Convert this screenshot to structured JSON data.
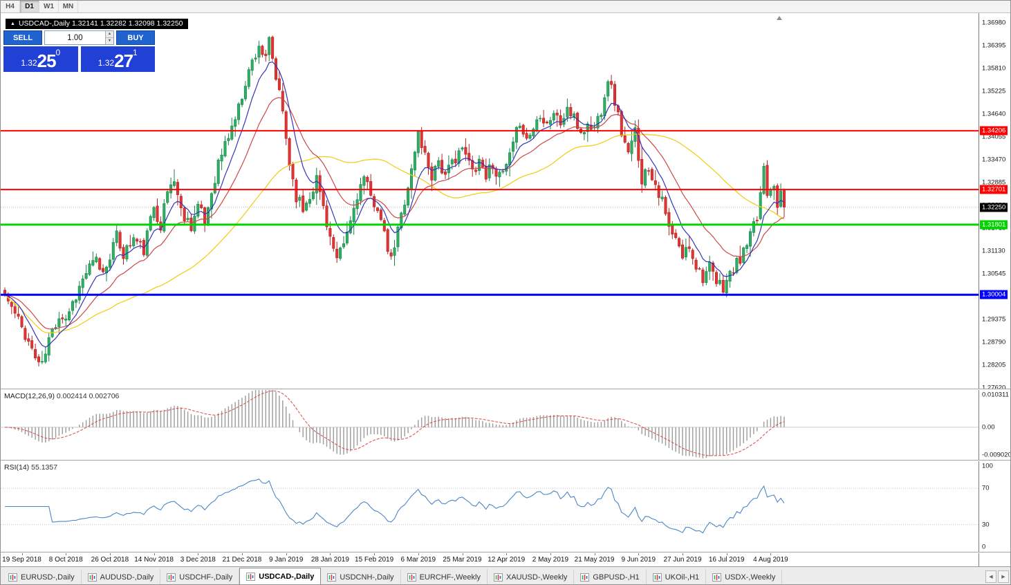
{
  "toolbar": {
    "timeframes": [
      {
        "label": "H4",
        "active": false
      },
      {
        "label": "D1",
        "active": true
      },
      {
        "label": "W1",
        "active": false
      },
      {
        "label": "MN",
        "active": false
      }
    ]
  },
  "chart_header": {
    "info": "USDCAD-,Daily  1.32141 1.32282 1.32098 1.32250"
  },
  "trade_panel": {
    "sell_label": "SELL",
    "buy_label": "BUY",
    "volume": "1.00",
    "sell_price": {
      "prefix": "1.32",
      "main": "25",
      "pip": "0"
    },
    "buy_price": {
      "prefix": "1.32",
      "main": "27",
      "pip": "1"
    },
    "accent_color": "#2063cf",
    "price_box_color": "#2140d6"
  },
  "price_axis": {
    "min": 1.276,
    "max": 1.3722,
    "labels": [
      "1.36980",
      "1.36395",
      "1.35810",
      "1.35225",
      "1.34640",
      "1.34055",
      "1.33470",
      "1.32885",
      "1.32300",
      "1.31715",
      "1.31130",
      "1.30545",
      "1.29960",
      "1.29375",
      "1.28790",
      "1.28205",
      "1.27620"
    ]
  },
  "levels": [
    {
      "label": "1.34206",
      "value": 1.34206,
      "color": "#ff0000",
      "thickness": 2
    },
    {
      "label": "1.32701",
      "value": 1.32701,
      "color": "#ff0000",
      "thickness": 2
    },
    {
      "label": "1.31801",
      "value": 1.31801,
      "color": "#00d400",
      "thickness": 3
    },
    {
      "label": "1.30004",
      "value": 1.30004,
      "color": "#0000ff",
      "thickness": 3
    }
  ],
  "current_price": {
    "label": "1.32250",
    "value": 1.3225
  },
  "chart_data": {
    "type": "candlestick",
    "symbol": "USDCAD",
    "timeframe": "Daily",
    "bars_total": 231,
    "noise_seed": 11,
    "colors": {
      "bull": "#2eaf64",
      "bull_border": "#188347",
      "bear": "#e03535",
      "bear_border": "#b51f1f",
      "ma_fast": "#3333bb",
      "ma_mid": "#cf4646",
      "ma_slow": "#f2cf1f",
      "macd_hist": "#a0a0a0",
      "macd_signal": "#e04545",
      "rsi_line": "#4a86c8"
    },
    "moving_averages": [
      {
        "period": 8,
        "type": "ema"
      },
      {
        "period": 20,
        "type": "ema"
      },
      {
        "period": 50,
        "type": "sma"
      }
    ],
    "anchors": [
      [
        0,
        1.3
      ],
      [
        3,
        1.295
      ],
      [
        6,
        1.29
      ],
      [
        9,
        1.284
      ],
      [
        11,
        1.2818
      ],
      [
        13,
        1.2885
      ],
      [
        16,
        1.295
      ],
      [
        18,
        1.2942
      ],
      [
        21,
        1.3
      ],
      [
        24,
        1.3058
      ],
      [
        27,
        1.3088
      ],
      [
        29,
        1.3055
      ],
      [
        31,
        1.3105
      ],
      [
        33,
        1.3148
      ],
      [
        35,
        1.3105
      ],
      [
        38,
        1.3145
      ],
      [
        41,
        1.3115
      ],
      [
        44,
        1.3228
      ],
      [
        46,
        1.318
      ],
      [
        48,
        1.3265
      ],
      [
        50,
        1.3298
      ],
      [
        52,
        1.3215
      ],
      [
        55,
        1.318
      ],
      [
        57,
        1.3228
      ],
      [
        59,
        1.3185
      ],
      [
        61,
        1.3265
      ],
      [
        63,
        1.3338
      ],
      [
        66,
        1.3408
      ],
      [
        69,
        1.3478
      ],
      [
        71,
        1.3548
      ],
      [
        73,
        1.3598
      ],
      [
        75,
        1.3642
      ],
      [
        77,
        1.3598
      ],
      [
        78,
        1.3648
      ],
      [
        80,
        1.3555
      ],
      [
        82,
        1.3468
      ],
      [
        84,
        1.3338
      ],
      [
        86,
        1.3255
      ],
      [
        88,
        1.322
      ],
      [
        90,
        1.3258
      ],
      [
        92,
        1.3298
      ],
      [
        94,
        1.3228
      ],
      [
        96,
        1.3148
      ],
      [
        98,
        1.3082
      ],
      [
        100,
        1.3128
      ],
      [
        102,
        1.3188
      ],
      [
        104,
        1.3258
      ],
      [
        106,
        1.3298
      ],
      [
        108,
        1.3248
      ],
      [
        110,
        1.3228
      ],
      [
        112,
        1.3148
      ],
      [
        114,
        1.3085
      ],
      [
        116,
        1.3165
      ],
      [
        118,
        1.3245
      ],
      [
        120,
        1.3318
      ],
      [
        122,
        1.3415
      ],
      [
        124,
        1.3358
      ],
      [
        126,
        1.3308
      ],
      [
        128,
        1.3348
      ],
      [
        130,
        1.3298
      ],
      [
        132,
        1.3338
      ],
      [
        134,
        1.3372
      ],
      [
        136,
        1.3358
      ],
      [
        138,
        1.3318
      ],
      [
        140,
        1.3348
      ],
      [
        142,
        1.3308
      ],
      [
        144,
        1.3338
      ],
      [
        146,
        1.3298
      ],
      [
        148,
        1.3328
      ],
      [
        150,
        1.3378
      ],
      [
        152,
        1.3448
      ],
      [
        154,
        1.3398
      ],
      [
        156,
        1.3428
      ],
      [
        158,
        1.3468
      ],
      [
        160,
        1.3442
      ],
      [
        162,
        1.3468
      ],
      [
        164,
        1.3438
      ],
      [
        166,
        1.3478
      ],
      [
        168,
        1.3448
      ],
      [
        170,
        1.3418
      ],
      [
        172,
        1.3432
      ],
      [
        174,
        1.3428
      ],
      [
        176,
        1.3478
      ],
      [
        178,
        1.3558
      ],
      [
        180,
        1.3498
      ],
      [
        182,
        1.3418
      ],
      [
        184,
        1.3355
      ],
      [
        186,
        1.3418
      ],
      [
        188,
        1.3298
      ],
      [
        190,
        1.3328
      ],
      [
        192,
        1.3288
      ],
      [
        194,
        1.3238
      ],
      [
        196,
        1.3168
      ],
      [
        198,
        1.3138
      ],
      [
        200,
        1.3098
      ],
      [
        202,
        1.3128
      ],
      [
        204,
        1.3078
      ],
      [
        206,
        1.3048
      ],
      [
        208,
        1.3068
      ],
      [
        210,
        1.3028
      ],
      [
        212,
        1.3022
      ],
      [
        214,
        1.3052
      ],
      [
        216,
        1.3078
      ],
      [
        218,
        1.3108
      ],
      [
        220,
        1.3148
      ],
      [
        222,
        1.3195
      ],
      [
        224,
        1.3332
      ],
      [
        225,
        1.3268
      ],
      [
        227,
        1.3292
      ],
      [
        228,
        1.3238
      ],
      [
        229,
        1.3252
      ],
      [
        230,
        1.3225
      ]
    ],
    "date_labels": [
      "19 Sep 2018",
      "8 Oct 2018",
      "26 Oct 2018",
      "14 Nov 2018",
      "3 Dec 2018",
      "21 Dec 2018",
      "9 Jan 2019",
      "28 Jan 2019",
      "15 Feb 2019",
      "6 Mar 2019",
      "25 Mar 2019",
      "12 Apr 2019",
      "2 May 2019",
      "21 May 2019",
      "9 Jun 2019",
      "27 Jun 2019",
      "16 Jul 2019",
      "4 Aug 2019"
    ],
    "date_label_first_index": 5,
    "date_label_step": 13,
    "macd": {
      "label": "MACD(12,26,9)",
      "values": "0.002414 0.002706",
      "fast": 12,
      "slow": 26,
      "signal": 9,
      "axis_labels": [
        "0.010311",
        "0.00",
        "-0.0090203"
      ],
      "max": 0.010311,
      "min": -0.0090203
    },
    "rsi": {
      "label": "RSI(14)",
      "value": "55.1357",
      "period": 14,
      "axis_labels": [
        "100",
        "70",
        "30",
        "0"
      ],
      "level_lines": [
        70,
        30
      ]
    }
  },
  "tabbar": {
    "tabs": [
      {
        "label": "EURUSD-,Daily",
        "active": false
      },
      {
        "label": "AUDUSD-,Daily",
        "active": false
      },
      {
        "label": "USDCHF-,Daily",
        "active": false
      },
      {
        "label": "USDCAD-,Daily",
        "active": true
      },
      {
        "label": "USDCNH-,Daily",
        "active": false
      },
      {
        "label": "EURCHF-,Weekly",
        "active": false
      },
      {
        "label": "XAUUSD-,Weekly",
        "active": false
      },
      {
        "label": "GBPUSD-,H1",
        "active": false
      },
      {
        "label": "UKOil-,H1",
        "active": false
      },
      {
        "label": "USDX-,Weekly",
        "active": false
      }
    ],
    "prev_icon": "◀",
    "next_icon": "▶"
  }
}
